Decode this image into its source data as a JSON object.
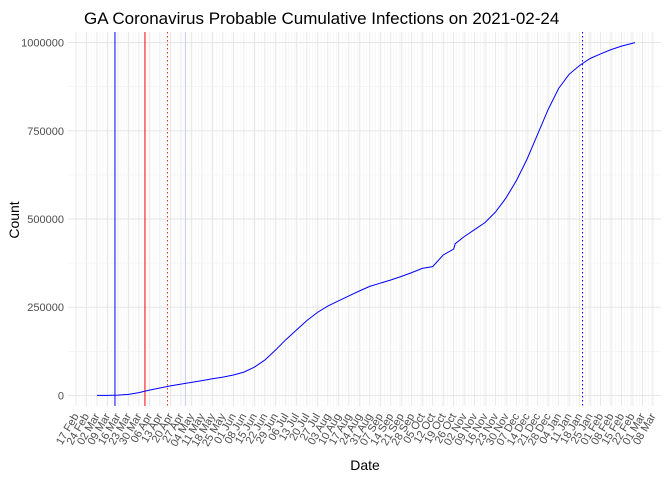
{
  "chart_data": {
    "type": "line",
    "title": "GA Coronavirus Probable Cumulative Infections on 2021-02-24",
    "xlabel": "Date",
    "ylabel": "Count",
    "x_ticks": [
      "17 Feb",
      "24 Feb",
      "02 Mar",
      "09 Mar",
      "16 Mar",
      "23 Mar",
      "30 Mar",
      "06 Apr",
      "13 Apr",
      "20 Apr",
      "27 Apr",
      "04 May",
      "11 May",
      "18 May",
      "25 May",
      "01 Jun",
      "08 Jun",
      "15 Jun",
      "22 Jun",
      "29 Jun",
      "06 Jul",
      "13 Jul",
      "20 Jul",
      "27 Jul",
      "03 Aug",
      "10 Aug",
      "17 Aug",
      "24 Aug",
      "31 Aug",
      "07 Sep",
      "14 Sep",
      "21 Sep",
      "28 Sep",
      "05 Oct",
      "12 Oct",
      "19 Oct",
      "26 Oct",
      "02 Nov",
      "09 Nov",
      "16 Nov",
      "23 Nov",
      "30 Nov",
      "07 Dec",
      "14 Dec",
      "21 Dec",
      "28 Dec",
      "04 Jan",
      "11 Jan",
      "18 Jan",
      "25 Jan",
      "01 Feb",
      "08 Feb",
      "15 Feb",
      "22 Feb",
      "01 Mar",
      "08 Mar"
    ],
    "y_ticks": [
      0,
      250000,
      500000,
      750000,
      1000000
    ],
    "ylim": [
      -30000,
      1030000
    ],
    "grid": true,
    "series": [
      {
        "color": "#0000ff",
        "x": [
          "2020-03-02",
          "2020-03-09",
          "2020-03-16",
          "2020-03-23",
          "2020-03-30",
          "2020-04-06",
          "2020-04-13",
          "2020-04-20",
          "2020-04-27",
          "2020-05-04",
          "2020-05-11",
          "2020-05-18",
          "2020-05-25",
          "2020-06-01",
          "2020-06-08",
          "2020-06-15",
          "2020-06-22",
          "2020-06-29",
          "2020-07-06",
          "2020-07-13",
          "2020-07-20",
          "2020-07-27",
          "2020-08-03",
          "2020-08-10",
          "2020-08-17",
          "2020-08-24",
          "2020-08-31",
          "2020-09-07",
          "2020-09-14",
          "2020-09-21",
          "2020-09-28",
          "2020-10-05",
          "2020-10-12",
          "2020-10-19",
          "2020-10-26",
          "2020-10-27",
          "2020-11-02",
          "2020-11-09",
          "2020-11-16",
          "2020-11-23",
          "2020-11-30",
          "2020-12-07",
          "2020-12-14",
          "2020-12-21",
          "2020-12-28",
          "2021-01-04",
          "2021-01-11",
          "2021-01-18",
          "2021-01-25",
          "2021-02-01",
          "2021-02-08",
          "2021-02-15",
          "2021-02-24"
        ],
        "y": [
          0,
          0,
          1000,
          3000,
          8000,
          15000,
          21000,
          27000,
          32000,
          37000,
          42000,
          47000,
          52000,
          58000,
          66000,
          80000,
          100000,
          128000,
          158000,
          185000,
          212000,
          235000,
          253000,
          268000,
          282000,
          296000,
          309000,
          318000,
          327000,
          337000,
          348000,
          360000,
          365000,
          398000,
          415000,
          430000,
          450000,
          470000,
          490000,
          520000,
          560000,
          610000,
          670000,
          740000,
          810000,
          870000,
          910000,
          935000,
          955000,
          968000,
          980000,
          990000,
          1000000
        ]
      }
    ],
    "vlines": [
      {
        "date": "2020-03-14",
        "color": "#0000ff",
        "style": "solid"
      },
      {
        "date": "2020-04-03",
        "color": "#ff0000",
        "style": "solid"
      },
      {
        "date": "2020-04-18",
        "color": "#cc3300",
        "style": "dotted"
      },
      {
        "date": "2020-04-30",
        "color": "#ccccff",
        "style": "solid"
      },
      {
        "date": "2021-01-20",
        "color": "#0000ff",
        "style": "dotted"
      }
    ]
  }
}
